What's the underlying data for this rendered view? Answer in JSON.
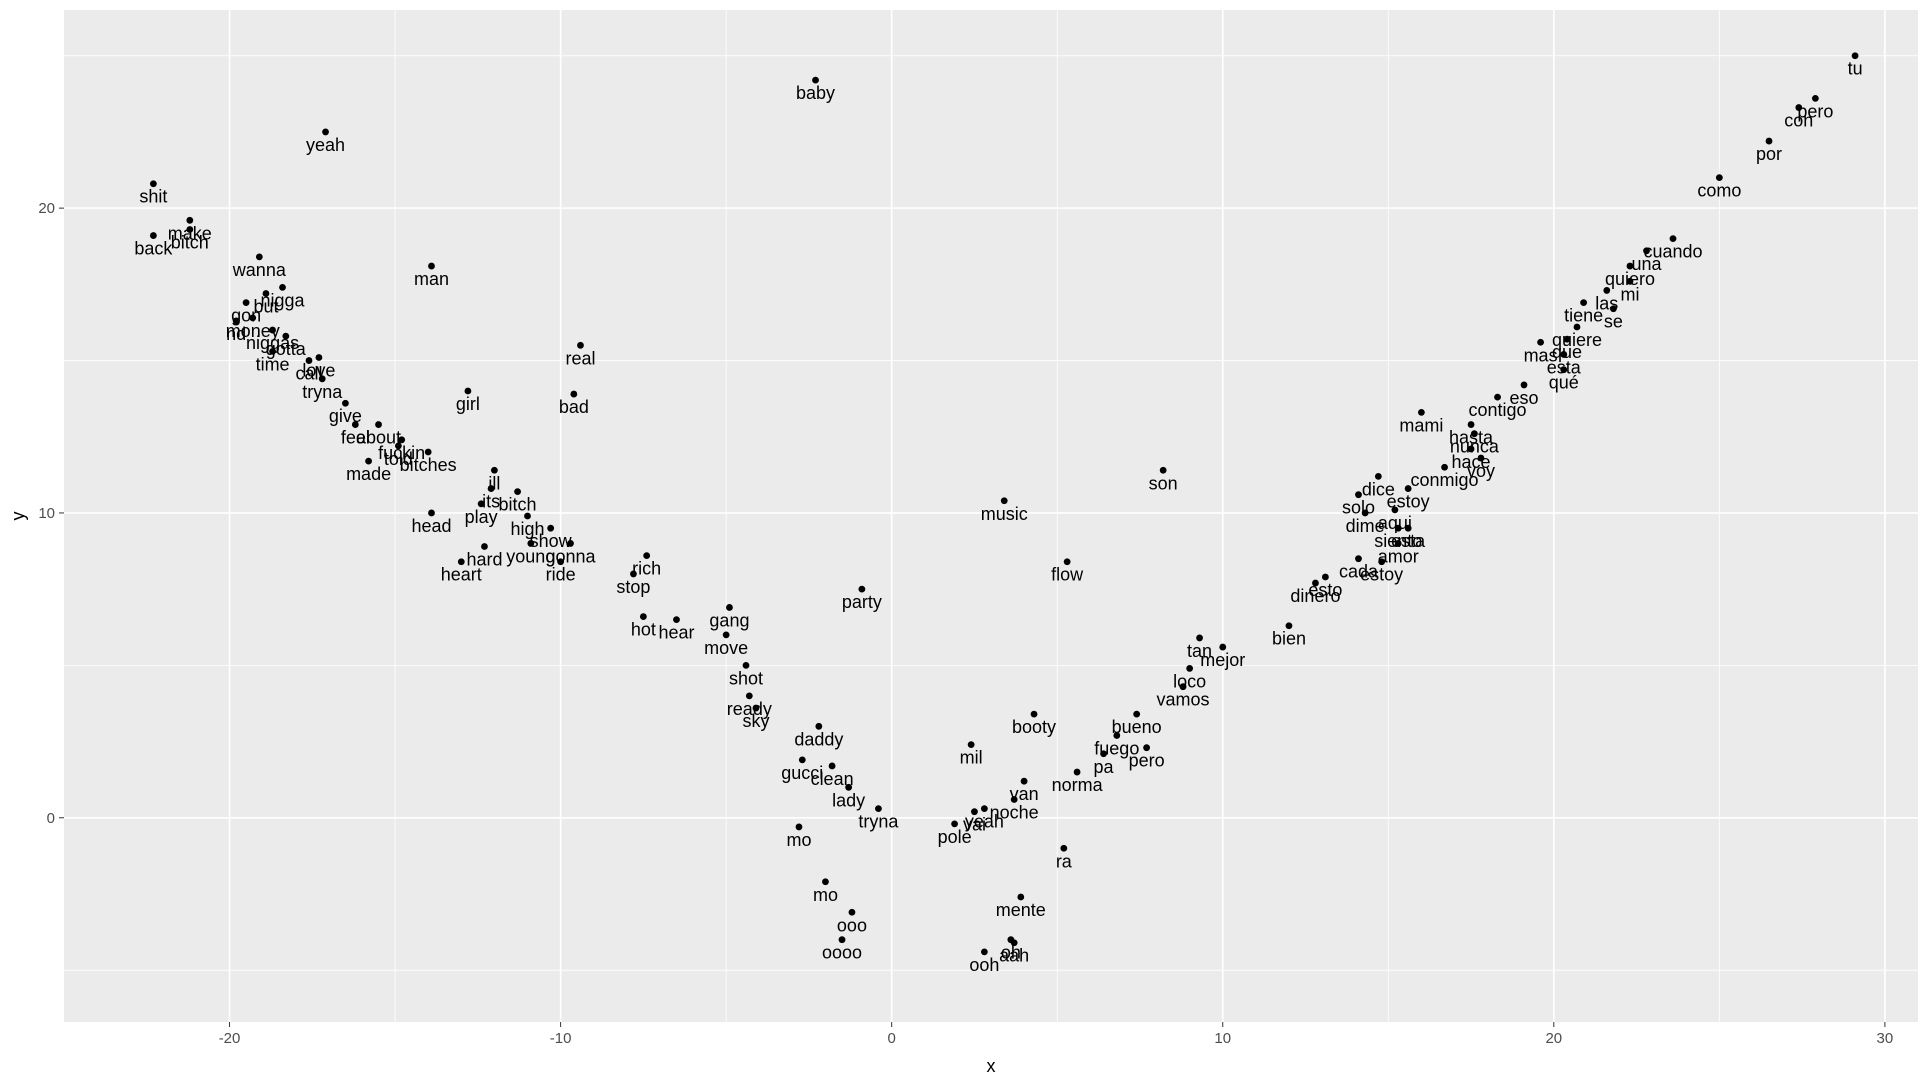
{
  "chart_data": {
    "type": "scatter",
    "title": "",
    "xlabel": "x",
    "ylabel": "y",
    "xlim": [
      -25,
      31
    ],
    "ylim": [
      -6.7,
      26.5
    ],
    "x_ticks": [
      -20,
      -10,
      0,
      10,
      20,
      30
    ],
    "y_ticks": [
      0,
      10,
      20
    ],
    "x_tick_labels": [
      "-20",
      "-10",
      "0",
      "10",
      "20",
      "30"
    ],
    "y_tick_labels": [
      "0",
      "10",
      "20"
    ],
    "grid": true,
    "panel_background": "#ebebeb",
    "grid_color": "#ffffff",
    "point_color": "#000000",
    "labeled_points": [
      {
        "x": 29.1,
        "y": 25.0,
        "label": "tu"
      },
      {
        "x": 27.9,
        "y": 23.6,
        "label": "pero"
      },
      {
        "x": 27.4,
        "y": 23.3,
        "label": "con"
      },
      {
        "x": 26.5,
        "y": 22.2,
        "label": "por"
      },
      {
        "x": 25.0,
        "y": 21.0,
        "label": "como"
      },
      {
        "x": 23.6,
        "y": 19.0,
        "label": "cuando"
      },
      {
        "x": 22.8,
        "y": 18.6,
        "label": "una"
      },
      {
        "x": 22.3,
        "y": 18.1,
        "label": "quiero"
      },
      {
        "x": 22.3,
        "y": 17.6,
        "label": "mi"
      },
      {
        "x": 21.6,
        "y": 17.3,
        "label": "las"
      },
      {
        "x": 20.9,
        "y": 16.9,
        "label": "tiene"
      },
      {
        "x": 21.8,
        "y": 16.7,
        "label": "se"
      },
      {
        "x": 20.7,
        "y": 16.1,
        "label": "quiere"
      },
      {
        "x": 20.4,
        "y": 15.7,
        "label": "que"
      },
      {
        "x": 19.6,
        "y": 15.6,
        "label": "mas"
      },
      {
        "x": 20.3,
        "y": 15.2,
        "label": "esta"
      },
      {
        "x": 20.3,
        "y": 14.7,
        "label": "qué"
      },
      {
        "x": 19.1,
        "y": 14.2,
        "label": "eso"
      },
      {
        "x": 18.3,
        "y": 13.8,
        "label": "contigo"
      },
      {
        "x": 16.0,
        "y": 13.3,
        "label": "mami"
      },
      {
        "x": 17.5,
        "y": 12.9,
        "label": "hasta"
      },
      {
        "x": 17.6,
        "y": 12.6,
        "label": "nunca"
      },
      {
        "x": 17.5,
        "y": 12.1,
        "label": "hace"
      },
      {
        "x": 16.7,
        "y": 11.5,
        "label": "conmigo"
      },
      {
        "x": 17.8,
        "y": 11.8,
        "label": "voy"
      },
      {
        "x": 14.7,
        "y": 11.2,
        "label": "dice"
      },
      {
        "x": 15.6,
        "y": 10.8,
        "label": "estoy"
      },
      {
        "x": 14.1,
        "y": 10.6,
        "label": "solo"
      },
      {
        "x": 14.3,
        "y": 10.0,
        "label": "dime"
      },
      {
        "x": 15.2,
        "y": 10.1,
        "label": "aqui"
      },
      {
        "x": 15.3,
        "y": 9.5,
        "label": "siento"
      },
      {
        "x": 15.6,
        "y": 9.5,
        "label": "esta"
      },
      {
        "x": 15.3,
        "y": 9.0,
        "label": "amor"
      },
      {
        "x": 14.1,
        "y": 8.5,
        "label": "cada"
      },
      {
        "x": 14.8,
        "y": 8.4,
        "label": "estoy"
      },
      {
        "x": 12.8,
        "y": 7.7,
        "label": "dinero"
      },
      {
        "x": 13.1,
        "y": 7.9,
        "label": "esto"
      },
      {
        "x": 12.0,
        "y": 6.3,
        "label": "bien"
      },
      {
        "x": 9.3,
        "y": 5.9,
        "label": "tan"
      },
      {
        "x": 10.0,
        "y": 5.6,
        "label": "mejor"
      },
      {
        "x": 9.0,
        "y": 4.9,
        "label": "loco"
      },
      {
        "x": 8.8,
        "y": 4.3,
        "label": "vamos"
      },
      {
        "x": 7.4,
        "y": 3.4,
        "label": "bueno"
      },
      {
        "x": 6.8,
        "y": 2.7,
        "label": "fuego"
      },
      {
        "x": 7.7,
        "y": 2.3,
        "label": "pero"
      },
      {
        "x": 6.4,
        "y": 2.1,
        "label": "pa"
      },
      {
        "x": 5.6,
        "y": 1.5,
        "label": "norma"
      },
      {
        "x": 4.0,
        "y": 1.2,
        "label": "van"
      },
      {
        "x": 3.7,
        "y": 0.6,
        "label": "noche"
      },
      {
        "x": 2.8,
        "y": 0.3,
        "label": "yeah"
      },
      {
        "x": 2.5,
        "y": 0.2,
        "label": "vai"
      },
      {
        "x": 1.9,
        "y": -0.2,
        "label": "pole"
      },
      {
        "x": 5.2,
        "y": -1.0,
        "label": "ra"
      },
      {
        "x": 3.9,
        "y": -2.6,
        "label": "mente"
      },
      {
        "x": 3.6,
        "y": -4.0,
        "label": "oh"
      },
      {
        "x": 2.8,
        "y": -4.4,
        "label": "ooh"
      },
      {
        "x": 3.7,
        "y": -4.1,
        "label": "aah"
      },
      {
        "x": -1.2,
        "y": -3.1,
        "label": "ooo"
      },
      {
        "x": -2.0,
        "y": -2.1,
        "label": "mo"
      },
      {
        "x": -1.5,
        "y": -4.0,
        "label": "oooo"
      },
      {
        "x": -2.8,
        "y": -0.3,
        "label": "mo"
      },
      {
        "x": -0.4,
        "y": 0.3,
        "label": "tryna"
      },
      {
        "x": -1.3,
        "y": 1.0,
        "label": "lady"
      },
      {
        "x": -1.8,
        "y": 1.7,
        "label": "clean"
      },
      {
        "x": -2.7,
        "y": 1.9,
        "label": "gucci"
      },
      {
        "x": -2.2,
        "y": 3.0,
        "label": "daddy"
      },
      {
        "x": -4.1,
        "y": 3.6,
        "label": "sky"
      },
      {
        "x": -4.3,
        "y": 4.0,
        "label": "ready"
      },
      {
        "x": -4.4,
        "y": 5.0,
        "label": "shot"
      },
      {
        "x": -5.0,
        "y": 6.0,
        "label": "move"
      },
      {
        "x": -6.5,
        "y": 6.5,
        "label": "hear"
      },
      {
        "x": -7.5,
        "y": 6.6,
        "label": "hot"
      },
      {
        "x": -4.9,
        "y": 6.9,
        "label": "gang"
      },
      {
        "x": -0.9,
        "y": 7.5,
        "label": "party"
      },
      {
        "x": -7.8,
        "y": 8.0,
        "label": "stop"
      },
      {
        "x": -7.4,
        "y": 8.6,
        "label": "rich"
      },
      {
        "x": -10.0,
        "y": 8.4,
        "label": "ride"
      },
      {
        "x": -9.7,
        "y": 9.0,
        "label": "gonna"
      },
      {
        "x": -10.9,
        "y": 9.0,
        "label": "young"
      },
      {
        "x": -10.3,
        "y": 9.5,
        "label": "show"
      },
      {
        "x": -11.0,
        "y": 9.9,
        "label": "high"
      },
      {
        "x": -12.3,
        "y": 8.9,
        "label": "hard"
      },
      {
        "x": -13.0,
        "y": 8.4,
        "label": "heart"
      },
      {
        "x": -11.3,
        "y": 10.7,
        "label": "bitch"
      },
      {
        "x": -12.1,
        "y": 10.8,
        "label": "its"
      },
      {
        "x": -12.4,
        "y": 10.3,
        "label": "play"
      },
      {
        "x": -13.9,
        "y": 10.0,
        "label": "head"
      },
      {
        "x": -12.0,
        "y": 11.4,
        "label": "ill"
      },
      {
        "x": -14.0,
        "y": 12.0,
        "label": "bitches"
      },
      {
        "x": -15.8,
        "y": 11.7,
        "label": "made"
      },
      {
        "x": -14.9,
        "y": 12.2,
        "label": "told"
      },
      {
        "x": -14.8,
        "y": 12.4,
        "label": "fuckin"
      },
      {
        "x": -16.2,
        "y": 12.9,
        "label": "feel"
      },
      {
        "x": -15.5,
        "y": 12.9,
        "label": "about"
      },
      {
        "x": -16.5,
        "y": 13.6,
        "label": "give"
      },
      {
        "x": -17.2,
        "y": 14.4,
        "label": "tryna"
      },
      {
        "x": -17.6,
        "y": 15.0,
        "label": "call"
      },
      {
        "x": -17.3,
        "y": 15.1,
        "label": "love"
      },
      {
        "x": -18.7,
        "y": 15.3,
        "label": "time"
      },
      {
        "x": -18.3,
        "y": 15.8,
        "label": "gotta"
      },
      {
        "x": -18.7,
        "y": 16.0,
        "label": "niggas"
      },
      {
        "x": -19.8,
        "y": 16.3,
        "label": "nd"
      },
      {
        "x": -19.3,
        "y": 16.4,
        "label": "money"
      },
      {
        "x": -19.5,
        "y": 16.9,
        "label": "gon"
      },
      {
        "x": -18.9,
        "y": 17.2,
        "label": "but"
      },
      {
        "x": -18.4,
        "y": 17.4,
        "label": "nigga"
      },
      {
        "x": -19.1,
        "y": 18.4,
        "label": "wanna"
      },
      {
        "x": -22.3,
        "y": 19.1,
        "label": "back"
      },
      {
        "x": -21.2,
        "y": 19.3,
        "label": "bitch"
      },
      {
        "x": -21.2,
        "y": 19.6,
        "label": "make"
      },
      {
        "x": -22.3,
        "y": 20.8,
        "label": "shit"
      },
      {
        "x": -17.1,
        "y": 22.5,
        "label": "yeah"
      },
      {
        "x": -13.9,
        "y": 18.1,
        "label": "man"
      },
      {
        "x": -9.4,
        "y": 15.5,
        "label": "real"
      },
      {
        "x": -12.8,
        "y": 14.0,
        "label": "girl"
      },
      {
        "x": -9.6,
        "y": 13.9,
        "label": "bad"
      },
      {
        "x": -2.3,
        "y": 24.2,
        "label": "baby"
      },
      {
        "x": 3.4,
        "y": 10.4,
        "label": "music"
      },
      {
        "x": 8.2,
        "y": 11.4,
        "label": "son"
      },
      {
        "x": 5.3,
        "y": 8.4,
        "label": "flow"
      },
      {
        "x": 4.3,
        "y": 3.4,
        "label": "booty"
      },
      {
        "x": 2.4,
        "y": 2.4,
        "label": "mil"
      }
    ]
  }
}
